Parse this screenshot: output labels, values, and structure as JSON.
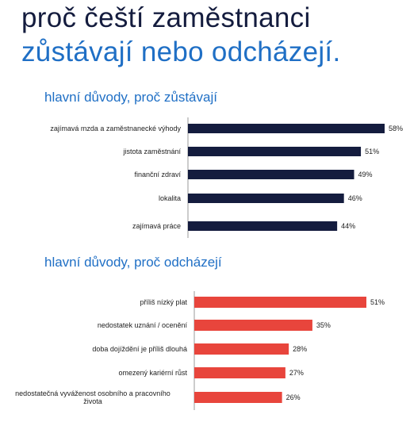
{
  "title": {
    "line1": "proč čeští zaměstnanci",
    "line2": "zůstávají nebo odcházejí."
  },
  "colors": {
    "title_dark": "#141c3e",
    "accent_blue": "#1f6fc5",
    "stay_bar": "#141c3e",
    "leave_bar": "#e8453c",
    "axis": "#999999"
  },
  "chart_data": [
    {
      "type": "bar",
      "orientation": "horizontal",
      "title": "hlavní důvody, proč zůstávají",
      "categories": [
        [
          "zajímavá mzda a zaměstnanecké výhody"
        ],
        [
          "jistota zaměstnání"
        ],
        [
          "finanční zdraví"
        ],
        [
          "lokalita"
        ],
        [
          "zajímavá práce"
        ]
      ],
      "values": [
        58,
        51,
        49,
        46,
        44
      ],
      "value_labels": [
        "58%",
        "51%",
        "49%",
        "46%",
        "44%"
      ],
      "unit": "%",
      "xlim": [
        0,
        70
      ],
      "grid": false
    },
    {
      "type": "bar",
      "orientation": "horizontal",
      "title": "hlavní důvody, proč odcházejí",
      "categories": [
        [
          "příliš nízký plat"
        ],
        [
          "nedostatek uznání / ocenění"
        ],
        [
          "doba dojíždění je příliš dlouhá"
        ],
        [
          "omezený kariérní růst"
        ],
        [
          "nedostatečná vyváženost osobního a pracovního",
          "života"
        ]
      ],
      "values": [
        51,
        35,
        28,
        27,
        26
      ],
      "value_labels": [
        "51%",
        "35%",
        "28%",
        "27%",
        "26%"
      ],
      "unit": "%",
      "xlim": [
        0,
        60
      ],
      "grid": false
    }
  ]
}
